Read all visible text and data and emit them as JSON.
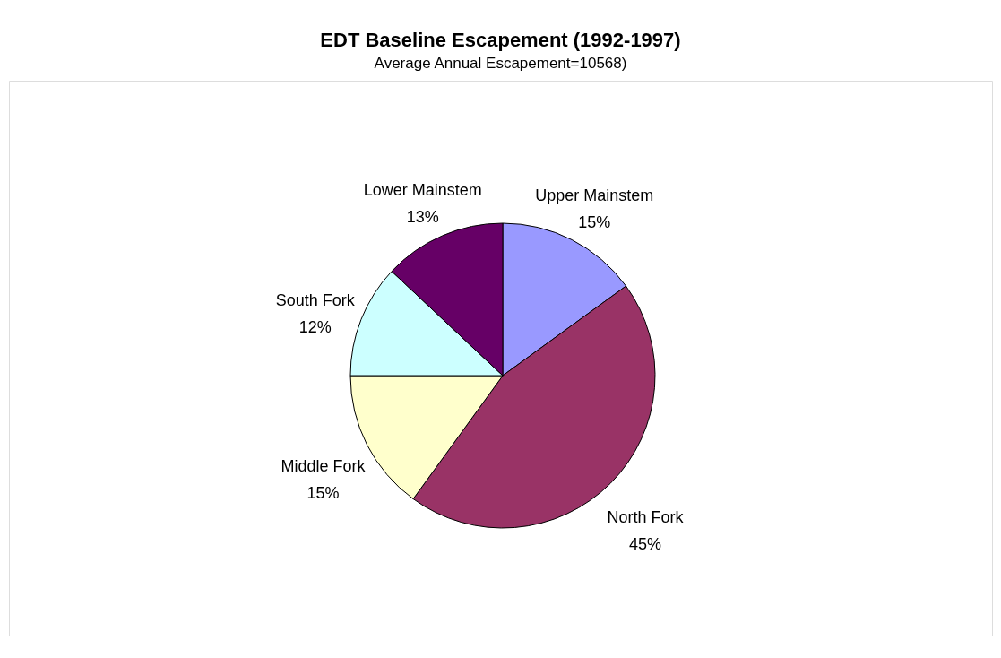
{
  "chart_data": {
    "type": "pie",
    "title": "EDT Baseline Escapement (1992-1997)",
    "subtitle": "Average Annual Escapement=10568)",
    "categories": [
      "Upper Mainstem",
      "North Fork",
      "Middle Fork",
      "South Fork",
      "Lower Mainstem"
    ],
    "values": [
      15,
      45,
      15,
      12,
      13
    ],
    "colors": [
      "#9999ff",
      "#993366",
      "#ffffcc",
      "#ccffff",
      "#660066"
    ],
    "value_labels": [
      "15%",
      "45%",
      "15%",
      "12%",
      "13%"
    ]
  }
}
